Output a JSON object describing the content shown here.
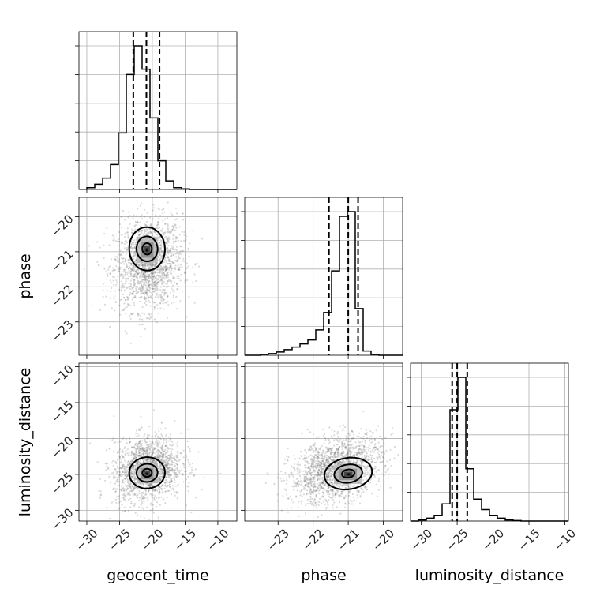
{
  "chart_data": {
    "type": "corner",
    "parameters": [
      "geocent_time",
      "phase",
      "luminosity_distance"
    ],
    "axis_labels": {
      "x": [
        "geocent_time",
        "phase",
        "luminosity_distance"
      ],
      "y": [
        "phase",
        "luminosity_distance"
      ]
    },
    "ranges": {
      "geocent_time": [
        -31.2,
        -7.1
      ],
      "phase": [
        -23.95,
        -19.45
      ],
      "luminosity_distance": [
        -31.5,
        -9.5
      ]
    },
    "ticks": {
      "geocent_time": [
        -30,
        -25,
        -20,
        -15,
        -10
      ],
      "phase": [
        -23,
        -22,
        -21,
        -20
      ],
      "luminosity_distance": [
        -30,
        -25,
        -20,
        -15,
        -10
      ]
    },
    "quantiles": {
      "geocent_time": [
        -22.9,
        -20.9,
        -18.9
      ],
      "phase": [
        -21.55,
        -21.0,
        -20.72
      ],
      "luminosity_distance": [
        -25.7,
        -25.0,
        -23.6
      ]
    },
    "histograms": {
      "geocent_time": {
        "bins": [
          -31.2,
          -29.995,
          -28.79,
          -27.585,
          -26.38,
          -25.175,
          -23.97,
          -22.765,
          -21.56,
          -20.355,
          -19.15,
          -17.945,
          -16.74,
          -15.535,
          -14.33,
          -13.125,
          -11.92,
          -10.715,
          -9.51,
          -8.305,
          -7.1
        ],
        "counts": [
          0.1,
          1.2,
          3.5,
          7.6,
          16.8,
          38.0,
          77.3,
          96.6,
          80.9,
          48.1,
          19.3,
          5.8,
          1.2,
          0.4,
          0,
          0,
          0,
          0,
          0,
          0
        ]
      },
      "phase": {
        "bins": [
          -23.95,
          -23.725,
          -23.5,
          -23.275,
          -23.05,
          -22.825,
          -22.6,
          -22.375,
          -22.15,
          -21.925,
          -21.7,
          -21.475,
          -21.25,
          -21.025,
          -20.8,
          -20.575,
          -20.35,
          -20.125,
          -19.9,
          -19.675,
          -19.45
        ],
        "counts": [
          0,
          0,
          1.0,
          2.0,
          3.8,
          6.6,
          9.6,
          13.2,
          17.8,
          29.5,
          49.8,
          98.3,
          161.9,
          167.4,
          54.4,
          5.0,
          0.9,
          0,
          0,
          0
        ]
      },
      "luminosity_distance": {
        "bins": [
          -31.5,
          -30.4,
          -29.3,
          -28.2,
          -27.1,
          -26.0,
          -24.9,
          -23.8,
          -22.7,
          -21.6,
          -20.5,
          -19.4,
          -18.3,
          -17.2,
          -16.1,
          -15.0,
          -13.9,
          -12.8,
          -11.7,
          -10.6,
          -9.5
        ],
        "counts": [
          0,
          1,
          3,
          6,
          18,
          117,
          151,
          55,
          23,
          12,
          6,
          3,
          1,
          0.5,
          0,
          0,
          0,
          0,
          0,
          0
        ]
      }
    },
    "pairs": [
      {
        "x": "geocent_time",
        "y": "phase",
        "mean": [
          -20.6,
          -21.35
        ],
        "sd": [
          2.6,
          0.65
        ],
        "corr": 0.1,
        "peak": [
          -20.8,
          -20.95
        ]
      },
      {
        "x": "geocent_time",
        "y": "luminosity_distance",
        "mean": [
          -20.7,
          -24.3
        ],
        "sd": [
          2.6,
          2.3
        ],
        "corr": 0.15,
        "peak": [
          -20.8,
          -24.9
        ]
      },
      {
        "x": "phase",
        "y": "luminosity_distance",
        "mean": [
          -21.35,
          -24.3
        ],
        "sd": [
          0.65,
          2.3
        ],
        "corr": 0.35,
        "peak": [
          -21.0,
          -25.0
        ]
      }
    ]
  }
}
